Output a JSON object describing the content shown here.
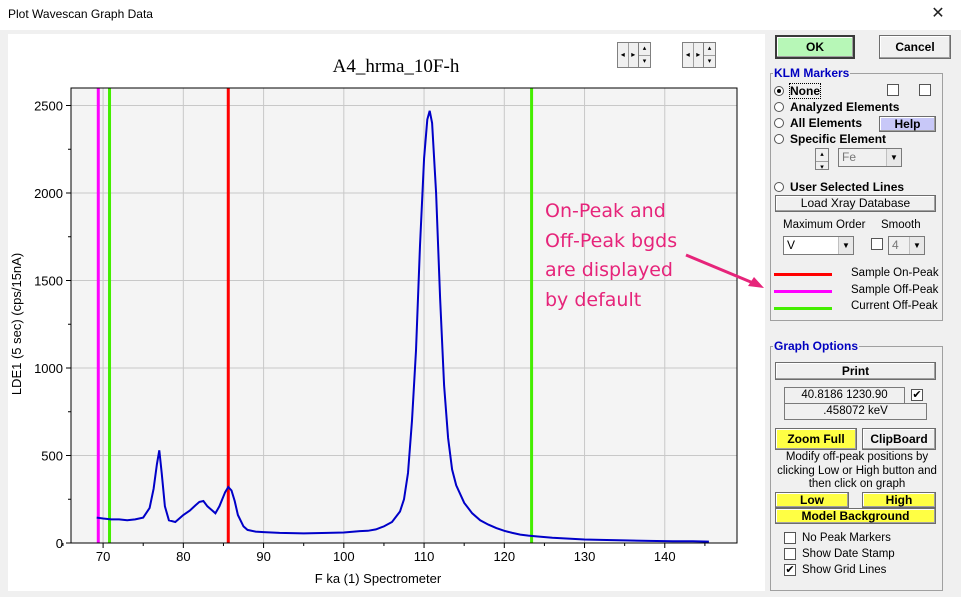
{
  "window": {
    "title": "Plot Wavescan Graph Data",
    "close_glyph": "✕"
  },
  "graph": {
    "title": "A4_hrma_10F-h",
    "spinner_glyphs": {
      "left": "◂",
      "right": "▸",
      "up": "▴",
      "down": "▾"
    }
  },
  "annotation": {
    "lines": [
      "On-Peak and",
      "Off-Peak bgds",
      "are displayed",
      "by default"
    ],
    "color": "#e6247a"
  },
  "buttons": {
    "ok": "OK",
    "cancel": "Cancel",
    "help": "Help",
    "load_xray": "Load Xray Database",
    "print": "Print",
    "zoom_full": "Zoom Full",
    "clipboard": "ClipBoard",
    "low": "Low",
    "high": "High",
    "model_background": "Model  Background"
  },
  "klm": {
    "title": "KLM Markers",
    "options": [
      {
        "label": "None",
        "selected": true
      },
      {
        "label": "Analyzed Elements",
        "selected": false
      },
      {
        "label": "All Elements",
        "selected": false
      },
      {
        "label": "Specific Element",
        "selected": false
      },
      {
        "label": "User Selected Lines",
        "selected": false
      }
    ],
    "element_value": "Fe",
    "max_order_label": "Maximum Order",
    "max_order_value": "V",
    "smooth_label": "Smooth",
    "smooth_value": "4",
    "legend": [
      {
        "label": "Sample On-Peak",
        "color": "#ff0000"
      },
      {
        "label": "Sample Off-Peak",
        "color": "#ff00ff"
      },
      {
        "label": "Current Off-Peak",
        "color": "#44ee00"
      }
    ]
  },
  "graph_options": {
    "title": "Graph Options",
    "cursor_readout": "40.8186  1230.90",
    "cursor_checked": true,
    "energy_readout": ".458072 keV",
    "instructions": "Modify off-peak positions by clicking Low or High button and then click on graph",
    "checkboxes": [
      {
        "label": "No Peak Markers",
        "checked": false
      },
      {
        "label": "Show Date Stamp",
        "checked": false
      },
      {
        "label": "Show Grid Lines",
        "checked": true
      }
    ]
  },
  "chart_data": {
    "type": "line",
    "title": "A4_hrma_10F-h",
    "xlabel": "F  ka (1) Spectrometer",
    "ylabel": "LDE1 (5 sec) (cps/15nA)",
    "xlim": [
      66,
      149
    ],
    "ylim": [
      0,
      2600
    ],
    "xticks": [
      70,
      80,
      90,
      100,
      110,
      120,
      130,
      140
    ],
    "yticks": [
      0,
      500,
      1000,
      1500,
      2000,
      2500
    ],
    "grid": true,
    "series": [
      {
        "color": "#0000c8",
        "x": [
          69.2,
          70,
          71,
          72,
          73,
          74,
          75,
          75.8,
          76.3,
          76.7,
          77,
          77.3,
          77.7,
          78.2,
          79,
          80,
          80.8,
          81.5,
          82,
          82.5,
          83,
          83.5,
          84,
          84.5,
          85.2,
          85.6,
          86,
          86.4,
          86.8,
          87.5,
          88,
          89,
          90,
          92,
          95,
          98,
          100,
          102,
          103,
          104,
          105,
          106,
          107,
          107.5,
          108,
          108.5,
          109,
          109.5,
          110,
          110.4,
          110.7,
          111,
          111.5,
          112,
          112.5,
          113,
          113.5,
          114,
          115,
          116,
          117,
          118,
          119,
          120,
          121,
          122,
          123,
          124,
          126,
          128,
          130,
          132,
          135,
          138,
          141,
          143.5,
          145.5
        ],
        "y": [
          145,
          140,
          135,
          135,
          130,
          135,
          145,
          200,
          310,
          450,
          530,
          400,
          210,
          130,
          120,
          160,
          185,
          215,
          235,
          240,
          210,
          190,
          170,
          210,
          290,
          320,
          300,
          240,
          160,
          95,
          75,
          65,
          62,
          58,
          55,
          58,
          60,
          68,
          70,
          78,
          95,
          120,
          180,
          250,
          400,
          700,
          1100,
          1700,
          2200,
          2420,
          2470,
          2400,
          2000,
          1400,
          900,
          600,
          420,
          330,
          230,
          170,
          130,
          105,
          85,
          70,
          58,
          48,
          42,
          38,
          30,
          25,
          20,
          18,
          15,
          12,
          10,
          10,
          8
        ]
      }
    ],
    "markers": [
      {
        "name": "Sample Off-Peak",
        "x": 69.4,
        "color": "#ff00ff"
      },
      {
        "name": "Current Off-Peak",
        "x": 70.8,
        "color": "#44ee00"
      },
      {
        "name": "Sample On-Peak",
        "x": 85.6,
        "color": "#ff0000"
      },
      {
        "name": "Current Off-Peak",
        "x": 123.4,
        "color": "#44ee00"
      }
    ]
  }
}
